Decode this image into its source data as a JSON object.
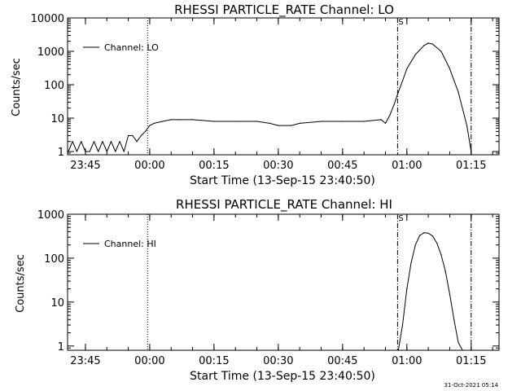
{
  "chart_data": [
    {
      "type": "line",
      "title": "RHESSI PARTICLE_RATE Channel: LO",
      "xlabel": "Start Time (13-Sep-15 23:40:50)",
      "ylabel": "Counts/sec",
      "y_scale": "log",
      "xlim": [
        "23:40:50",
        "01:21:30"
      ],
      "ylim": [
        0.8,
        10000
      ],
      "x_tick_labels": [
        "23:45",
        "00:00",
        "00:15",
        "00:30",
        "00:45",
        "01:00",
        "01:15"
      ],
      "y_tick_labels": [
        "1",
        "10",
        "100",
        "1000",
        "10000"
      ],
      "legend": "top-left",
      "series": [
        {
          "name": "Channel: LO",
          "x": [
            "23:41",
            "23:42",
            "23:43",
            "23:44",
            "23:45",
            "23:46",
            "23:47",
            "23:48",
            "23:49",
            "23:50",
            "23:51",
            "23:52",
            "23:53",
            "23:54",
            "23:55",
            "23:56",
            "23:57",
            "23:58",
            "23:59",
            "00:00",
            "00:01",
            "00:03",
            "00:05",
            "00:07",
            "00:10",
            "00:15",
            "00:20",
            "00:25",
            "00:28",
            "00:30",
            "00:33",
            "00:35",
            "00:40",
            "00:45",
            "00:50",
            "00:54",
            "00:55",
            "00:56",
            "00:57",
            "00:58",
            "00:59",
            "01:00",
            "01:02",
            "01:04",
            "01:05",
            "01:06",
            "01:08",
            "01:10",
            "01:12",
            "01:14",
            "01:15"
          ],
          "values": [
            1,
            2,
            1,
            2,
            1,
            1,
            2,
            1,
            2,
            1,
            2,
            1,
            2,
            1,
            3,
            3,
            2,
            3,
            4,
            6,
            7,
            8,
            9,
            9,
            9,
            8,
            8,
            8,
            7,
            6,
            6,
            7,
            8,
            8,
            8,
            9,
            7,
            12,
            25,
            60,
            130,
            300,
            800,
            1500,
            1750,
            1650,
            1000,
            300,
            60,
            6,
            1
          ]
        }
      ],
      "markers": [
        {
          "x": "23:59:30",
          "style": "dotted"
        },
        {
          "x": "00:57:50",
          "style": "dash-dot",
          "label": "S"
        },
        {
          "x": "01:15:00",
          "style": "dash-dot"
        }
      ]
    },
    {
      "type": "line",
      "title": "RHESSI PARTICLE_RATE Channel: HI",
      "xlabel": "Start Time (13-Sep-15 23:40:50)",
      "ylabel": "Counts/sec",
      "y_scale": "log",
      "xlim": [
        "23:40:50",
        "01:21:30"
      ],
      "ylim": [
        0.8,
        1000
      ],
      "x_tick_labels": [
        "23:45",
        "00:00",
        "00:15",
        "00:30",
        "00:45",
        "01:00",
        "01:15"
      ],
      "y_tick_labels": [
        "1",
        "10",
        "100",
        "1000"
      ],
      "legend": "top-left",
      "series": [
        {
          "name": "Channel: HI",
          "x": [
            "00:58",
            "00:59",
            "01:00",
            "01:01",
            "01:02",
            "01:03",
            "01:04",
            "01:05",
            "01:06",
            "01:07",
            "01:08",
            "01:09",
            "01:10",
            "01:11",
            "01:12",
            "01:13"
          ],
          "values": [
            0.8,
            3,
            20,
            80,
            200,
            330,
            380,
            370,
            320,
            220,
            120,
            50,
            15,
            4,
            1.2,
            0.8
          ]
        }
      ],
      "markers": [
        {
          "x": "23:59:30",
          "style": "dotted"
        },
        {
          "x": "00:57:50",
          "style": "dash-dot",
          "label": "S"
        },
        {
          "x": "01:15:00",
          "style": "dash-dot"
        }
      ]
    }
  ],
  "footer": {
    "timestamp": "31-Oct-2021 05:14"
  }
}
